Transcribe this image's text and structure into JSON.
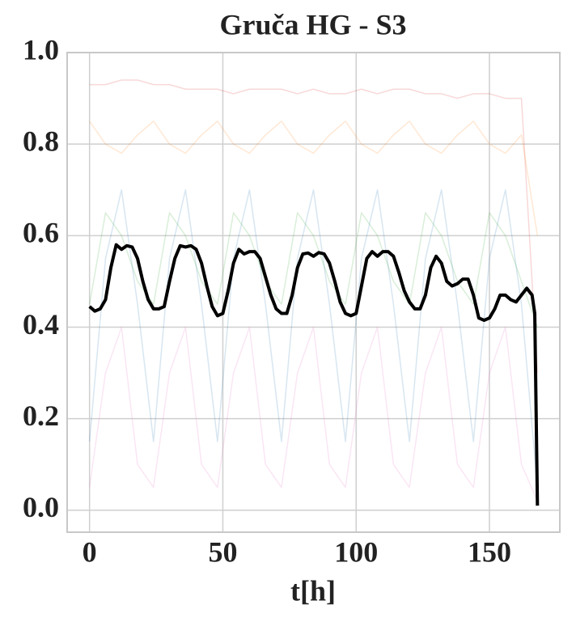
{
  "chart_data": {
    "type": "line",
    "title": "Gruča HG - S3",
    "xlabel": "t[h]",
    "xlim": [
      -8.4,
      176.4
    ],
    "ylim": [
      -0.048,
      1.0
    ],
    "xticks": [
      0,
      50,
      100,
      150
    ],
    "yticks": [
      {
        "value": 0,
        "label": "0.0"
      },
      0.2,
      0.4,
      0.6,
      0.8,
      {
        "value": 1,
        "label": "1.0"
      }
    ],
    "grid": true,
    "series": [
      {
        "color": "#d62728",
        "alpha": 0.18,
        "width": 1.5,
        "x": [
          0,
          6,
          12,
          18,
          24,
          30,
          36,
          42,
          48,
          54,
          60,
          66,
          72,
          78,
          84,
          90,
          96,
          102,
          108,
          114,
          120,
          126,
          132,
          138,
          144,
          150,
          156,
          162,
          168
        ],
        "values": [
          0.93,
          0.93,
          0.94,
          0.94,
          0.93,
          0.93,
          0.92,
          0.92,
          0.92,
          0.91,
          0.92,
          0.92,
          0.92,
          0.91,
          0.92,
          0.91,
          0.91,
          0.92,
          0.91,
          0.92,
          0.92,
          0.91,
          0.91,
          0.9,
          0.91,
          0.91,
          0.9,
          0.9,
          0.3
        ]
      },
      {
        "color": "#1f77b4",
        "alpha": 0.18,
        "width": 1.5,
        "x": [
          0,
          6,
          12,
          18,
          24,
          30,
          36,
          42,
          48,
          54,
          60,
          66,
          72,
          78,
          84,
          90,
          96,
          102,
          108,
          114,
          120,
          126,
          132,
          138,
          144,
          150,
          156,
          162,
          168
        ],
        "values": [
          0.15,
          0.55,
          0.7,
          0.45,
          0.15,
          0.55,
          0.7,
          0.45,
          0.15,
          0.55,
          0.7,
          0.45,
          0.15,
          0.55,
          0.7,
          0.45,
          0.15,
          0.55,
          0.7,
          0.45,
          0.15,
          0.55,
          0.7,
          0.45,
          0.15,
          0.55,
          0.7,
          0.45,
          0.05
        ]
      },
      {
        "color": "#2ca02c",
        "alpha": 0.18,
        "width": 1.5,
        "x": [
          0,
          6,
          12,
          18,
          24,
          30,
          36,
          42,
          48,
          54,
          60,
          66,
          72,
          78,
          84,
          90,
          96,
          102,
          108,
          114,
          120,
          126,
          132,
          138,
          144,
          150,
          156,
          162,
          168
        ],
        "values": [
          0.45,
          0.65,
          0.6,
          0.5,
          0.45,
          0.65,
          0.6,
          0.5,
          0.45,
          0.65,
          0.6,
          0.5,
          0.45,
          0.65,
          0.6,
          0.5,
          0.45,
          0.65,
          0.6,
          0.5,
          0.45,
          0.65,
          0.6,
          0.5,
          0.45,
          0.65,
          0.6,
          0.5,
          0.4
        ]
      },
      {
        "color": "#e377c2",
        "alpha": 0.18,
        "width": 1.5,
        "x": [
          0,
          6,
          12,
          18,
          24,
          30,
          36,
          42,
          48,
          54,
          60,
          66,
          72,
          78,
          84,
          90,
          96,
          102,
          108,
          114,
          120,
          126,
          132,
          138,
          144,
          150,
          156,
          162,
          168
        ],
        "values": [
          0.05,
          0.3,
          0.4,
          0.1,
          0.05,
          0.3,
          0.4,
          0.1,
          0.05,
          0.3,
          0.4,
          0.1,
          0.05,
          0.3,
          0.4,
          0.1,
          0.05,
          0.3,
          0.4,
          0.1,
          0.05,
          0.3,
          0.4,
          0.1,
          0.05,
          0.3,
          0.4,
          0.1,
          0.02
        ]
      },
      {
        "color": "#ff7f0e",
        "alpha": 0.18,
        "width": 1.5,
        "x": [
          0,
          6,
          12,
          18,
          24,
          30,
          36,
          42,
          48,
          54,
          60,
          66,
          72,
          78,
          84,
          90,
          96,
          102,
          108,
          114,
          120,
          126,
          132,
          138,
          144,
          150,
          156,
          162,
          168
        ],
        "values": [
          0.85,
          0.8,
          0.78,
          0.82,
          0.85,
          0.8,
          0.78,
          0.82,
          0.85,
          0.8,
          0.78,
          0.82,
          0.85,
          0.8,
          0.78,
          0.82,
          0.85,
          0.8,
          0.78,
          0.82,
          0.85,
          0.8,
          0.78,
          0.82,
          0.85,
          0.8,
          0.78,
          0.82,
          0.6
        ]
      },
      {
        "color": "#000000",
        "alpha": 1,
        "width": 4,
        "x": [
          0,
          2,
          4,
          6,
          8,
          10,
          12,
          14,
          16,
          18,
          20,
          22,
          24,
          26,
          28,
          30,
          32,
          34,
          36,
          38,
          40,
          42,
          44,
          46,
          48,
          50,
          52,
          54,
          56,
          58,
          60,
          62,
          64,
          66,
          68,
          70,
          72,
          74,
          76,
          78,
          80,
          82,
          84,
          86,
          88,
          90,
          92,
          94,
          96,
          98,
          100,
          102,
          104,
          106,
          108,
          110,
          112,
          114,
          116,
          118,
          120,
          122,
          124,
          126,
          128,
          130,
          132,
          134,
          136,
          138,
          140,
          142,
          144,
          146,
          148,
          150,
          152,
          154,
          156,
          158,
          160,
          162,
          164,
          166,
          167,
          168
        ],
        "values": [
          0.445,
          0.435,
          0.44,
          0.46,
          0.53,
          0.58,
          0.57,
          0.578,
          0.575,
          0.55,
          0.5,
          0.46,
          0.44,
          0.44,
          0.445,
          0.5,
          0.55,
          0.578,
          0.575,
          0.578,
          0.57,
          0.54,
          0.49,
          0.445,
          0.425,
          0.43,
          0.48,
          0.54,
          0.57,
          0.56,
          0.565,
          0.565,
          0.55,
          0.51,
          0.47,
          0.44,
          0.43,
          0.43,
          0.47,
          0.53,
          0.56,
          0.562,
          0.555,
          0.563,
          0.56,
          0.54,
          0.5,
          0.455,
          0.43,
          0.425,
          0.43,
          0.49,
          0.55,
          0.565,
          0.555,
          0.565,
          0.565,
          0.555,
          0.52,
          0.48,
          0.455,
          0.44,
          0.44,
          0.47,
          0.53,
          0.555,
          0.54,
          0.5,
          0.49,
          0.495,
          0.505,
          0.505,
          0.47,
          0.42,
          0.415,
          0.42,
          0.44,
          0.47,
          0.47,
          0.46,
          0.455,
          0.47,
          0.485,
          0.47,
          0.43,
          0.01
        ]
      }
    ]
  }
}
